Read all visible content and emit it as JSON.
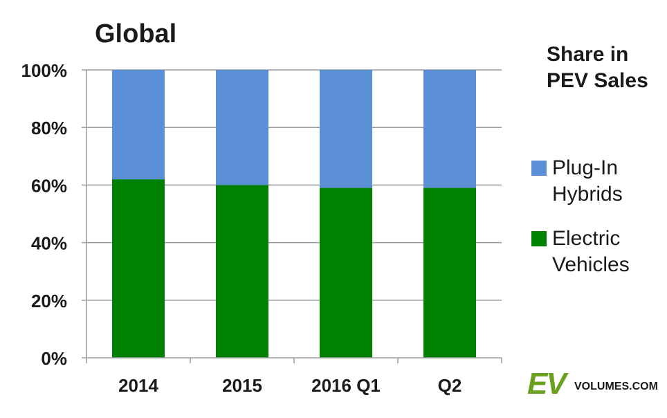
{
  "chart_data": {
    "type": "bar",
    "stacked": true,
    "title": "Global",
    "categories": [
      "2014",
      "2015",
      "2016 Q1",
      "Q2"
    ],
    "series": [
      {
        "name": "Electric Vehicles",
        "values": [
          62,
          60,
          59,
          59
        ],
        "color": "#008000"
      },
      {
        "name": "Plug-In Hybrids",
        "values": [
          38,
          40,
          41,
          41
        ],
        "color": "#5a8fd6"
      }
    ],
    "yticks": [
      "0%",
      "20%",
      "40%",
      "60%",
      "80%",
      "100%"
    ],
    "ylim": [
      0,
      100
    ],
    "grid": true,
    "legend": {
      "title_lines": [
        "Share in",
        "PEV Sales"
      ],
      "placement": "right",
      "items": [
        {
          "lines": [
            "Plug-In",
            "Hybrids"
          ],
          "color": "#5a8fd6"
        },
        {
          "lines": [
            "Electric",
            "Vehicles"
          ],
          "color": "#008000"
        }
      ]
    }
  },
  "logo": {
    "ev": "EV",
    "rest": "VOLUMES.COM"
  }
}
